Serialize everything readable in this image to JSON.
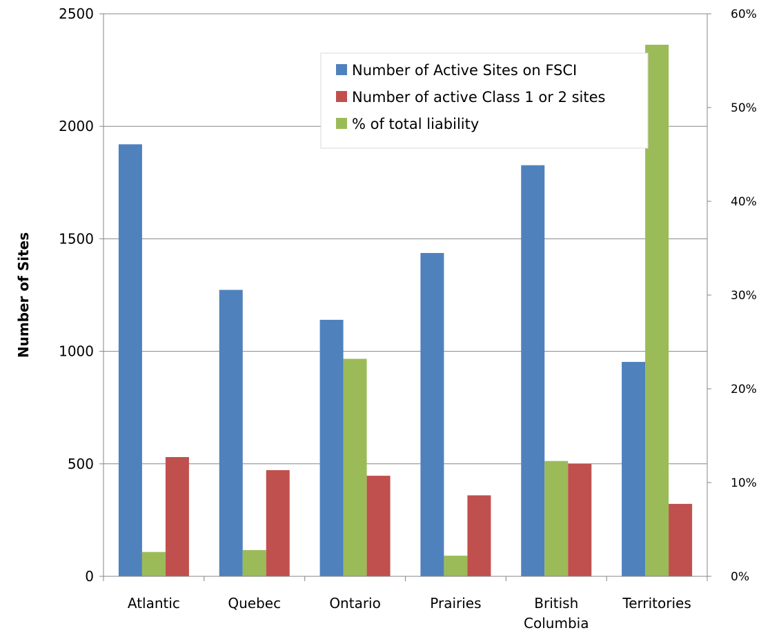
{
  "chart_data": {
    "type": "bar",
    "categories": [
      [
        "Atlantic"
      ],
      [
        "Quebec"
      ],
      [
        "Ontario"
      ],
      [
        "Prairies"
      ],
      [
        "British",
        "Columbia"
      ],
      [
        "Territories"
      ]
    ],
    "series": [
      {
        "name": "Number of Active Sites on FSCI",
        "axis": "left",
        "color": "#4F81BD",
        "values": [
          1920,
          1273,
          1140,
          1437,
          1827,
          953
        ]
      },
      {
        "name": "% of total liability",
        "axis": "right",
        "color": "#9BBB59",
        "values": [
          2.6,
          2.8,
          23.2,
          2.2,
          12.3,
          56.7
        ]
      },
      {
        "name": "Number of active Class 1 or 2 sites",
        "axis": "left",
        "color": "#C0504D",
        "values": [
          530,
          472,
          447,
          360,
          500,
          322
        ]
      }
    ],
    "legend_order": [
      0,
      2,
      1
    ],
    "legend_position": "top-right",
    "ylabel": "Number of Sites",
    "xlabel": "",
    "title": "",
    "ylim": [
      0,
      2500
    ],
    "y_ticks": [
      "0",
      "500",
      "1000",
      "1500",
      "2000",
      "2500"
    ],
    "y2lim": [
      0,
      60
    ],
    "y2_ticks": [
      "0%",
      "10%",
      "20%",
      "30%",
      "40%",
      "50%",
      "60%"
    ],
    "grid": true
  }
}
